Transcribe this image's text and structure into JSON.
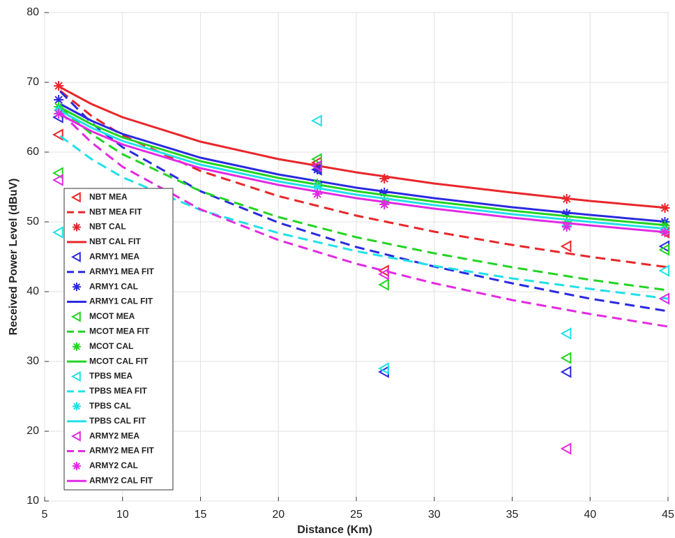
{
  "chart_data": {
    "type": "line",
    "xlabel": "Distance (Km)",
    "ylabel": "Received Power Level (dBuV)",
    "xlim": [
      5,
      45
    ],
    "ylim": [
      10,
      80
    ],
    "xticks": [
      5,
      10,
      15,
      20,
      25,
      30,
      35,
      40,
      45
    ],
    "yticks": [
      10,
      20,
      30,
      40,
      50,
      60,
      70,
      80
    ],
    "grid": true,
    "legend": "lower left",
    "series": [
      {
        "name": "NBT MEA",
        "color": "#e8262a",
        "style": "triangle",
        "x": [
          5.9,
          22.5,
          26.8,
          38.5,
          44.8
        ],
        "values": [
          62.5,
          58.5,
          43,
          46.5,
          48.5
        ]
      },
      {
        "name": "NBT MEA FIT",
        "color": "#e8262a",
        "style": "dashed",
        "x": [
          6,
          8,
          10,
          15,
          20,
          25,
          30,
          35,
          40,
          45
        ],
        "values": [
          68.8,
          65.2,
          62.4,
          57.3,
          53.7,
          50.9,
          48.6,
          46.7,
          45.0,
          43.5
        ]
      },
      {
        "name": "NBT CAL",
        "color": "#e8262a",
        "style": "asterisk",
        "x": [
          5.9,
          22.5,
          26.8,
          38.5,
          44.8
        ],
        "values": [
          69.5,
          58,
          56.2,
          53.3,
          52
        ]
      },
      {
        "name": "NBT CAL FIT",
        "color": "#e8262a",
        "style": "solid",
        "x": [
          6,
          8,
          10,
          15,
          20,
          25,
          30,
          35,
          40,
          45
        ],
        "values": [
          69.3,
          66.9,
          65.0,
          61.5,
          59.0,
          57.1,
          55.5,
          54.2,
          53.0,
          52.0
        ]
      },
      {
        "name": "ARMY1 MEA",
        "color": "#2a2ae0",
        "style": "triangle",
        "x": [
          5.9,
          22.5,
          26.8,
          38.5,
          44.8
        ],
        "values": [
          65,
          57.5,
          28.5,
          28.5,
          46.5
        ]
      },
      {
        "name": "ARMY1 MEA FIT",
        "color": "#2a2ae0",
        "style": "dashed",
        "x": [
          6,
          8,
          10,
          15,
          20,
          25,
          30,
          35,
          40,
          45
        ],
        "values": [
          68.7,
          64.2,
          60.7,
          54.4,
          49.9,
          46.4,
          43.6,
          41.2,
          39.0,
          37.2
        ]
      },
      {
        "name": "ARMY1 CAL",
        "color": "#2a2ae0",
        "style": "asterisk",
        "x": [
          5.9,
          22.5,
          26.8,
          38.5,
          44.8
        ],
        "values": [
          67.5,
          57.5,
          54.2,
          51.2,
          50
        ]
      },
      {
        "name": "ARMY1 CAL FIT",
        "color": "#2a2ae0",
        "style": "solid",
        "x": [
          6,
          8,
          10,
          15,
          20,
          25,
          30,
          35,
          40,
          45
        ],
        "values": [
          66.9,
          64.5,
          62.6,
          59.2,
          56.8,
          54.9,
          53.4,
          52.1,
          51.0,
          50.0
        ]
      },
      {
        "name": "MCOT MEA",
        "color": "#22d422",
        "style": "triangle",
        "x": [
          5.9,
          22.5,
          26.8,
          38.5,
          44.8
        ],
        "values": [
          57,
          59,
          41,
          30.5,
          46
        ]
      },
      {
        "name": "MCOT MEA FIT",
        "color": "#22d422",
        "style": "dashed",
        "x": [
          6,
          8,
          10,
          15,
          20,
          25,
          30,
          35,
          40,
          45
        ],
        "values": [
          66.3,
          62.6,
          59.7,
          54.4,
          50.7,
          47.8,
          45.5,
          43.5,
          41.7,
          40.2
        ]
      },
      {
        "name": "MCOT CAL",
        "color": "#22d422",
        "style": "asterisk",
        "x": [
          5.9,
          22.5,
          26.8,
          38.5,
          44.8
        ],
        "values": [
          66.5,
          55.5,
          53,
          50,
          49.5
        ]
      },
      {
        "name": "MCOT CAL FIT",
        "color": "#22d422",
        "style": "solid",
        "x": [
          6,
          8,
          10,
          15,
          20,
          25,
          30,
          35,
          40,
          45
        ],
        "values": [
          66.4,
          64.0,
          62.1,
          58.7,
          56.3,
          54.4,
          52.9,
          51.6,
          50.5,
          49.5
        ]
      },
      {
        "name": "TPBS MEA",
        "color": "#22e0e8",
        "style": "triangle",
        "x": [
          5.9,
          22.5,
          26.8,
          38.5,
          44.8
        ],
        "values": [
          48.5,
          64.5,
          29,
          34,
          43
        ]
      },
      {
        "name": "TPBS MEA FIT",
        "color": "#22e0e8",
        "style": "dashed",
        "x": [
          6,
          8,
          10,
          15,
          20,
          25,
          30,
          35,
          40,
          45
        ],
        "values": [
          62.3,
          59.0,
          56.4,
          51.7,
          48.4,
          45.8,
          43.7,
          41.9,
          40.4,
          39.0
        ]
      },
      {
        "name": "TPBS CAL",
        "color": "#22e0e8",
        "style": "asterisk",
        "x": [
          5.9,
          22.5,
          26.8,
          38.5,
          44.8
        ],
        "values": [
          66,
          55,
          52.5,
          49.5,
          48.8
        ]
      },
      {
        "name": "TPBS CAL FIT",
        "color": "#22e0e8",
        "style": "solid",
        "x": [
          6,
          8,
          10,
          15,
          20,
          25,
          30,
          35,
          40,
          45
        ],
        "values": [
          65.9,
          63.5,
          61.6,
          58.2,
          55.8,
          53.9,
          52.4,
          51.1,
          50.0,
          49.0
        ]
      },
      {
        "name": "ARMY2 MEA",
        "color": "#e22ae2",
        "style": "triangle",
        "x": [
          5.9,
          22.5,
          26.8,
          38.5,
          44.8
        ],
        "values": [
          56,
          58,
          42.5,
          17.5,
          39
        ]
      },
      {
        "name": "ARMY2 MEA FIT",
        "color": "#e22ae2",
        "style": "dashed",
        "x": [
          6,
          8,
          10,
          15,
          20,
          25,
          30,
          35,
          40,
          45
        ],
        "values": [
          65.7,
          61.4,
          57.9,
          51.8,
          47.4,
          44.0,
          41.2,
          38.8,
          36.8,
          35.0
        ]
      },
      {
        "name": "ARMY2 CAL",
        "color": "#e22ae2",
        "style": "asterisk",
        "x": [
          5.9,
          22.5,
          26.8,
          38.5,
          44.8
        ],
        "values": [
          65.5,
          54,
          52.5,
          49.3,
          48.5
        ]
      },
      {
        "name": "ARMY2 CAL FIT",
        "color": "#e22ae2",
        "style": "solid",
        "x": [
          6,
          8,
          10,
          15,
          20,
          25,
          30,
          35,
          40,
          45
        ],
        "values": [
          65.4,
          63.0,
          61.1,
          57.7,
          55.3,
          53.4,
          51.9,
          50.6,
          49.5,
          48.5
        ]
      }
    ]
  }
}
